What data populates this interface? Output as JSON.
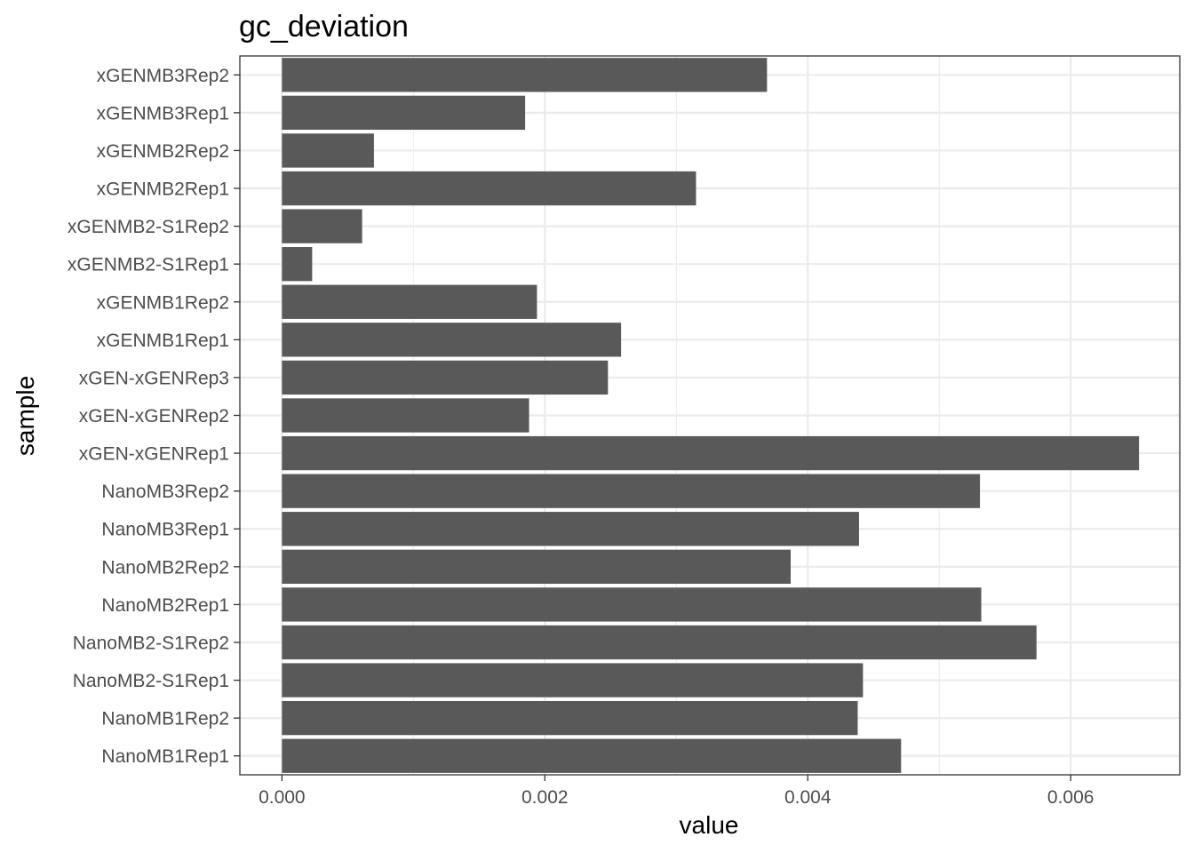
{
  "chart_data": {
    "type": "bar",
    "orientation": "horizontal",
    "title": "gc_deviation",
    "xlabel": "value",
    "ylabel": "sample",
    "xlim": [
      -0.00032,
      0.00683
    ],
    "xticks": [
      0.0,
      0.002,
      0.004,
      0.006
    ],
    "xtick_labels": [
      "0.000",
      "0.002",
      "0.004",
      "0.006"
    ],
    "grid": true,
    "bar_color": "#595959",
    "grid_color": "#ebebeb",
    "panel_border_color": "#333333",
    "categories": [
      "NanoMB1Rep1",
      "NanoMB1Rep2",
      "NanoMB2-S1Rep1",
      "NanoMB2-S1Rep2",
      "NanoMB2Rep1",
      "NanoMB2Rep2",
      "NanoMB3Rep1",
      "NanoMB3Rep2",
      "xGEN-xGENRep1",
      "xGEN-xGENRep2",
      "xGEN-xGENRep3",
      "xGENMB1Rep1",
      "xGENMB1Rep2",
      "xGENMB2-S1Rep1",
      "xGENMB2-S1Rep2",
      "xGENMB2Rep1",
      "xGENMB2Rep2",
      "xGENMB3Rep1",
      "xGENMB3Rep2"
    ],
    "values": [
      0.00471,
      0.00438,
      0.00442,
      0.00574,
      0.00532,
      0.00387,
      0.00439,
      0.00531,
      0.00652,
      0.00188,
      0.00248,
      0.00258,
      0.00194,
      0.00023,
      0.00061,
      0.00315,
      0.0007,
      0.00185,
      0.00369
    ]
  }
}
